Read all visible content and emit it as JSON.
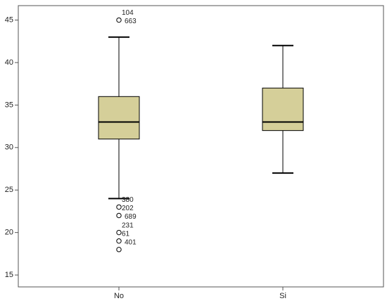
{
  "chart_data": {
    "type": "box",
    "categories": [
      "No",
      "Si"
    ],
    "color": "#d5cf99",
    "ylim": [
      13.6,
      46.7
    ],
    "yticks": [
      15,
      20,
      25,
      30,
      35,
      40,
      45
    ],
    "boxes": [
      {
        "whisker_low": 24,
        "q1": 31,
        "median": 33,
        "q3": 36,
        "whisker_high": 43,
        "outliers": [
          {
            "value": 45,
            "labels": [
              "104",
              "663"
            ]
          },
          {
            "value": 23,
            "labels": [
              "380"
            ]
          },
          {
            "value": 22,
            "labels": [
              "202",
              "689"
            ]
          },
          {
            "value": 20,
            "labels": [
              "231"
            ]
          },
          {
            "value": 19,
            "labels": [
              "61",
              "401"
            ]
          },
          {
            "value": 18
          }
        ]
      },
      {
        "whisker_low": 27,
        "q1": 32,
        "median": 33,
        "q3": 37,
        "whisker_high": 42
      }
    ]
  }
}
